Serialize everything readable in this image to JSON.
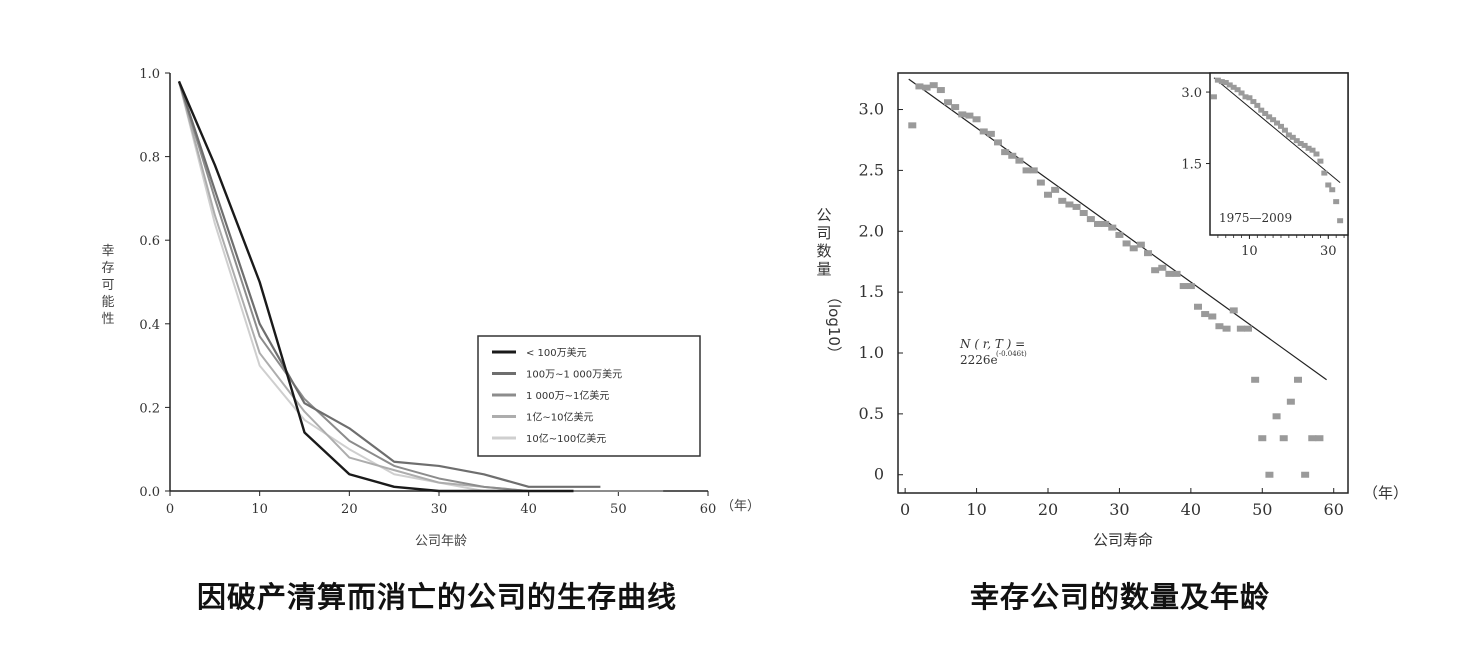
{
  "chart_data": [
    {
      "type": "line",
      "caption": "因破产清算而消亡的公司的生存曲线",
      "xlabel": "公司年龄",
      "ylabel": "幸存可能性",
      "x_unit": "（年）",
      "xlim": [
        0,
        60
      ],
      "ylim": [
        0,
        1.0
      ],
      "x_ticks": [
        0,
        10,
        20,
        30,
        40,
        50,
        60
      ],
      "y_ticks": [
        0.0,
        0.2,
        0.4,
        0.6,
        0.8,
        1.0
      ],
      "y_tick_labels": [
        "0.0",
        "0.2",
        "0.4",
        "0.6",
        "0.8",
        "1.0"
      ],
      "legend_position": "right",
      "series": [
        {
          "name": "< 100万美元",
          "color": "#1a1a1a",
          "x": [
            1,
            5,
            10,
            15,
            20,
            25,
            30,
            35,
            40,
            45
          ],
          "y": [
            0.98,
            0.78,
            0.5,
            0.14,
            0.04,
            0.01,
            0.0,
            0.0,
            0.0,
            0.0
          ]
        },
        {
          "name": "100万~1 000万美元",
          "color": "#6e6e6e",
          "x": [
            1,
            5,
            10,
            15,
            20,
            25,
            30,
            35,
            40,
            45,
            48
          ],
          "y": [
            0.98,
            0.72,
            0.4,
            0.21,
            0.15,
            0.07,
            0.06,
            0.04,
            0.01,
            0.01,
            0.01
          ]
        },
        {
          "name": "1 000万~1亿美元",
          "color": "#8c8c8c",
          "x": [
            1,
            5,
            10,
            15,
            20,
            25,
            30,
            35,
            40,
            45,
            50,
            55
          ],
          "y": [
            0.98,
            0.7,
            0.37,
            0.22,
            0.12,
            0.06,
            0.03,
            0.01,
            0.0,
            0.0,
            0.0,
            0.0
          ]
        },
        {
          "name": "1亿~10亿美元",
          "color": "#adadad",
          "x": [
            1,
            5,
            10,
            15,
            20,
            25,
            30,
            35,
            40
          ],
          "y": [
            0.98,
            0.66,
            0.33,
            0.19,
            0.08,
            0.05,
            0.02,
            0.01,
            0.0
          ]
        },
        {
          "name": "10亿~100亿美元",
          "color": "#cfcfcf",
          "x": [
            1,
            5,
            10,
            15,
            20,
            25,
            30,
            35,
            40
          ],
          "y": [
            0.98,
            0.64,
            0.3,
            0.17,
            0.1,
            0.04,
            0.02,
            0.0,
            0.0
          ]
        }
      ]
    },
    {
      "type": "scatter",
      "caption": "幸存公司的数量及年龄",
      "xlabel": "公司寿命",
      "ylabel_main": "公司数量",
      "ylabel_sub": "（log10）",
      "x_unit": "（年）",
      "xlim": [
        -1,
        62
      ],
      "ylim": [
        -0.15,
        3.3
      ],
      "x_ticks": [
        0,
        10,
        20,
        30,
        40,
        50,
        60
      ],
      "y_ticks": [
        0,
        0.5,
        1.0,
        1.5,
        2.0,
        2.5,
        3.0
      ],
      "y_tick_labels": [
        "0",
        "0.5",
        "1.0",
        "1.5",
        "2.0",
        "2.5",
        "3.0"
      ],
      "point_color": "#9a9a9a",
      "x": [
        1,
        2,
        3,
        4,
        5,
        6,
        7,
        8,
        9,
        10,
        11,
        12,
        13,
        14,
        15,
        16,
        17,
        18,
        19,
        20,
        21,
        22,
        23,
        24,
        25,
        26,
        27,
        28,
        29,
        30,
        31,
        32,
        33,
        34,
        35,
        36,
        37,
        38,
        39,
        40,
        41,
        42,
        43,
        44,
        45,
        46,
        47,
        48,
        49,
        50,
        51,
        52,
        53,
        54,
        55,
        56,
        57,
        58
      ],
      "y": [
        2.87,
        3.19,
        3.18,
        3.2,
        3.16,
        3.06,
        3.02,
        2.96,
        2.95,
        2.92,
        2.82,
        2.8,
        2.73,
        2.65,
        2.62,
        2.58,
        2.5,
        2.5,
        2.4,
        2.3,
        2.34,
        2.25,
        2.22,
        2.2,
        2.15,
        2.1,
        2.06,
        2.06,
        2.03,
        1.97,
        1.9,
        1.86,
        1.89,
        1.82,
        1.68,
        1.7,
        1.65,
        1.65,
        1.55,
        1.55,
        1.38,
        1.32,
        1.3,
        1.22,
        1.2,
        1.35,
        1.2,
        1.2,
        0.78,
        0.3,
        0.0,
        0.48,
        0.3,
        0.6,
        0.78,
        0.0,
        0.3,
        0.3
      ],
      "fit_line": {
        "x": [
          0.5,
          59
        ],
        "y": [
          3.25,
          0.78
        ]
      },
      "annotation": {
        "line1": "N ( r, T ) =",
        "line2": "2226e",
        "superscript": "(-0.046t)"
      },
      "inset": {
        "type": "scatter",
        "label": "1975—2009",
        "xlim": [
          0,
          35
        ],
        "ylim": [
          0,
          3.4
        ],
        "x_ticks": [
          10,
          30
        ],
        "y_ticks": [
          1.5,
          3.0
        ],
        "y_tick_labels": [
          "1.5",
          "3.0"
        ],
        "x": [
          1,
          2,
          3,
          4,
          5,
          6,
          7,
          8,
          9,
          10,
          11,
          12,
          13,
          14,
          15,
          16,
          17,
          18,
          19,
          20,
          21,
          22,
          23,
          24,
          25,
          26,
          27,
          28,
          29,
          30,
          31,
          32,
          33
        ],
        "y": [
          2.9,
          3.25,
          3.22,
          3.2,
          3.15,
          3.1,
          3.05,
          2.98,
          2.9,
          2.88,
          2.8,
          2.72,
          2.62,
          2.55,
          2.48,
          2.42,
          2.35,
          2.28,
          2.2,
          2.1,
          2.05,
          1.98,
          1.92,
          1.88,
          1.82,
          1.78,
          1.7,
          1.55,
          1.3,
          1.05,
          0.95,
          0.7,
          0.3
        ],
        "fit_line": {
          "x": [
            1,
            33
          ],
          "y": [
            3.3,
            1.1
          ]
        }
      }
    }
  ]
}
